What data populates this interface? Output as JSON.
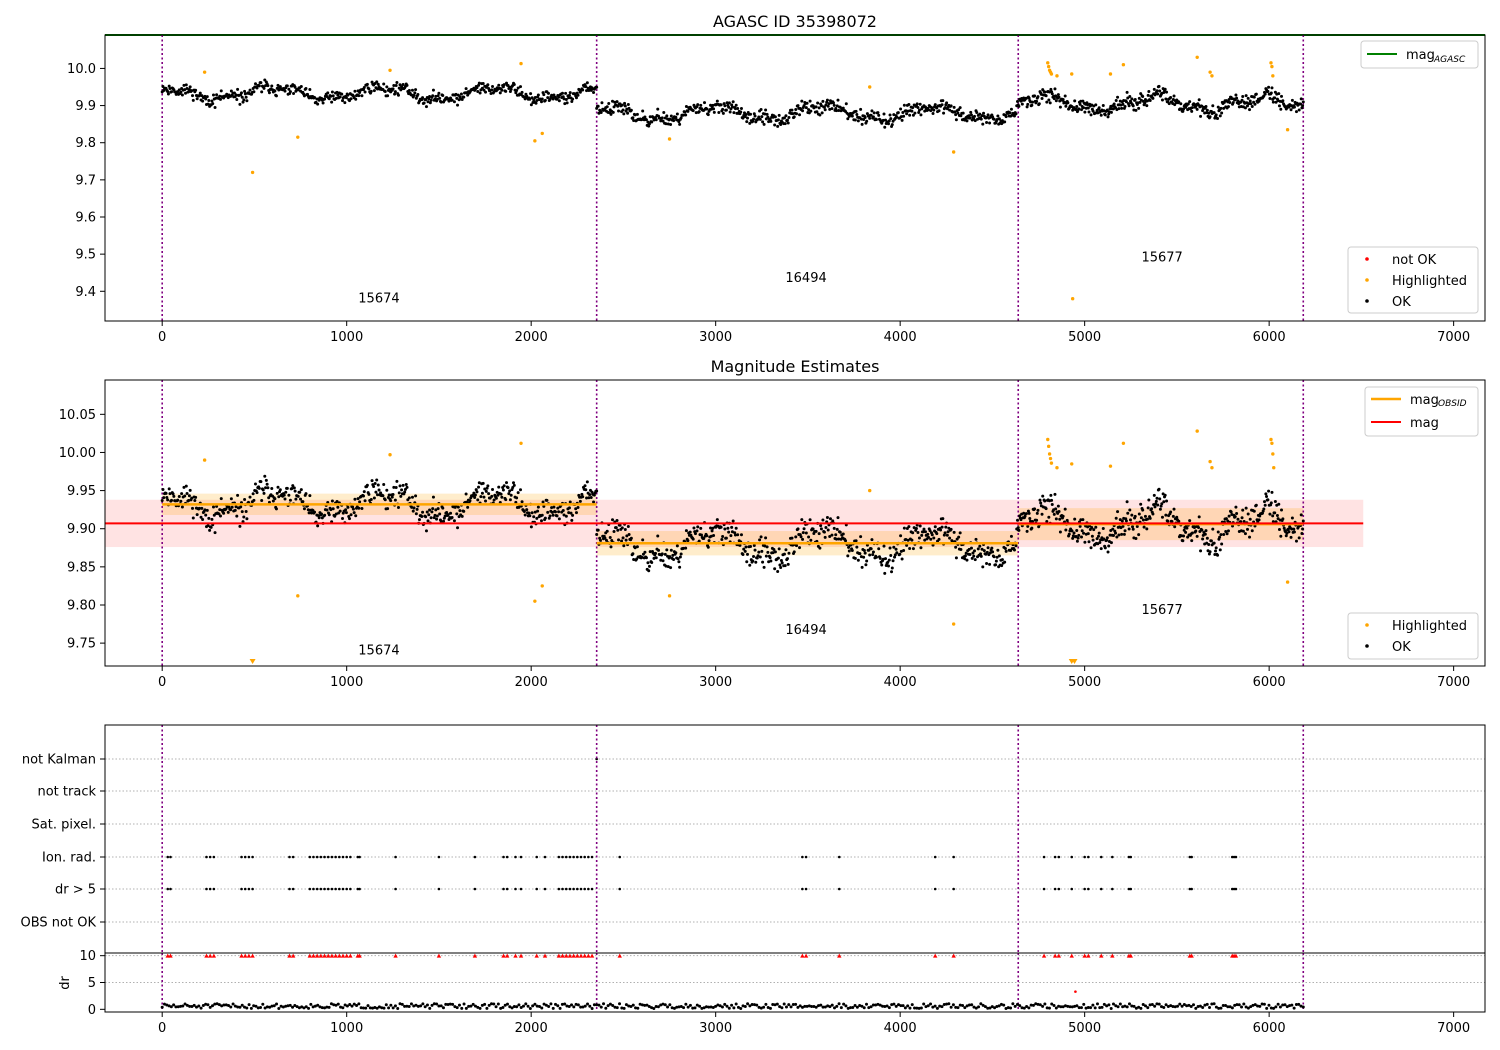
{
  "chart_data": [
    {
      "type": "scatter",
      "title": "AGASC ID 35398072",
      "xlim": [
        -310,
        7170
      ],
      "ylim": [
        9.32,
        10.09
      ],
      "xticks": [
        0,
        1000,
        2000,
        3000,
        4000,
        5000,
        6000,
        7000
      ],
      "yticks": [
        9.4,
        9.5,
        9.6,
        9.7,
        9.8,
        9.9,
        10.0
      ],
      "ytick_labels": [
        "9.4",
        "9.5",
        "9.6",
        "9.7",
        "9.8",
        "9.9",
        "10.0"
      ],
      "segment_boundaries": [
        0,
        2355,
        4640,
        6185
      ],
      "obsid_labels": [
        {
          "text": "15674",
          "x": 1175,
          "y": 9.37
        },
        {
          "text": "16494",
          "x": 3490,
          "y": 9.425
        },
        {
          "text": "15677",
          "x": 5420,
          "y": 9.48
        }
      ],
      "segments": [
        {
          "obsid": "15674",
          "x_start": 0,
          "x_end": 2355,
          "n_points": 560,
          "mean": 9.933,
          "spread": 0.018,
          "seed": 11
        },
        {
          "obsid": "16494",
          "x_start": 2355,
          "x_end": 4640,
          "n_points": 560,
          "mean": 9.88,
          "spread": 0.02,
          "seed": 23
        },
        {
          "obsid": "15677",
          "x_start": 4640,
          "x_end": 6185,
          "n_points": 420,
          "mean": 9.905,
          "spread": 0.022,
          "seed": 37
        }
      ],
      "series": [
        {
          "name": "mag_AGASC",
          "kind": "line",
          "color": "#008000",
          "y": 10.09,
          "x_start": -310,
          "x_end": 7170
        },
        {
          "name": "not OK",
          "kind": "scatter",
          "color": "#ff0000",
          "points": []
        },
        {
          "name": "Highlighted",
          "kind": "scatter",
          "color": "#ffa500",
          "points": [
            [
              230,
              9.99
            ],
            [
              490,
              9.72
            ],
            [
              735,
              9.815
            ],
            [
              1235,
              9.995
            ],
            [
              1945,
              10.013
            ],
            [
              2020,
              9.805
            ],
            [
              2060,
              9.825
            ],
            [
              2750,
              9.81
            ],
            [
              3835,
              9.95
            ],
            [
              4290,
              9.775
            ],
            [
              4800,
              10.015
            ],
            [
              4805,
              10.005
            ],
            [
              4810,
              9.995
            ],
            [
              4815,
              9.99
            ],
            [
              4820,
              9.985
            ],
            [
              4850,
              9.98
            ],
            [
              4930,
              9.985
            ],
            [
              4935,
              9.38
            ],
            [
              5140,
              9.985
            ],
            [
              5210,
              10.01
            ],
            [
              5610,
              10.03
            ],
            [
              5680,
              9.99
            ],
            [
              5690,
              9.98
            ],
            [
              6010,
              10.015
            ],
            [
              6015,
              10.005
            ],
            [
              6020,
              9.98
            ],
            [
              6100,
              9.835
            ]
          ]
        },
        {
          "name": "OK",
          "kind": "scatter",
          "color": "#000000",
          "points": []
        }
      ],
      "legend_position": "lower right",
      "legend_entries": [
        {
          "label": "not OK",
          "color": "#ff0000"
        },
        {
          "label": "Highlighted",
          "color": "#ffa500"
        },
        {
          "label": "OK",
          "color": "#000000"
        }
      ],
      "legend_line": {
        "label": "mag",
        "subscript": "AGASC",
        "color": "#008000",
        "position": "upper right"
      }
    },
    {
      "type": "scatter",
      "title": "Magnitude Estimates",
      "xlim": [
        -310,
        7170
      ],
      "ylim": [
        9.72,
        10.095
      ],
      "xticks": [
        0,
        1000,
        2000,
        3000,
        4000,
        5000,
        6000,
        7000
      ],
      "yticks": [
        9.75,
        9.8,
        9.85,
        9.9,
        9.95,
        10.0,
        10.05
      ],
      "ytick_labels": [
        "9.75",
        "9.80",
        "9.85",
        "9.90",
        "9.95",
        "10.00",
        "10.05"
      ],
      "segment_boundaries": [
        0,
        2355,
        4640,
        6185
      ],
      "obsid_labels": [
        {
          "text": "15674",
          "x": 1175,
          "y": 9.735
        },
        {
          "text": "16494",
          "x": 3490,
          "y": 9.762
        },
        {
          "text": "15677",
          "x": 5420,
          "y": 9.788
        }
      ],
      "mag": {
        "value": 9.907,
        "band_low": 9.876,
        "band_high": 9.938,
        "x_start": -310,
        "x_end": 6510,
        "color": "#ff0000",
        "band_color": "#ffe0e0"
      },
      "mag_obsid": [
        {
          "obsid": "15674",
          "x_start": 0,
          "x_end": 2355,
          "value": 9.932,
          "band_low": 9.918,
          "band_high": 9.946
        },
        {
          "obsid": "16494",
          "x_start": 2355,
          "x_end": 4640,
          "value": 9.881,
          "band_low": 9.865,
          "band_high": 9.897
        },
        {
          "obsid": "15677",
          "x_start": 4640,
          "x_end": 6185,
          "value": 9.906,
          "band_low": 9.885,
          "band_high": 9.927
        }
      ],
      "series": [
        {
          "name": "Highlighted",
          "kind": "scatter",
          "color": "#ffa500",
          "points": [
            [
              230,
              9.99
            ],
            [
              735,
              9.812
            ],
            [
              1235,
              9.997
            ],
            [
              1945,
              10.012
            ],
            [
              2020,
              9.805
            ],
            [
              2060,
              9.825
            ],
            [
              2750,
              9.812
            ],
            [
              3835,
              9.95
            ],
            [
              4290,
              9.775
            ],
            [
              4800,
              10.017
            ],
            [
              4805,
              10.008
            ],
            [
              4810,
              9.998
            ],
            [
              4815,
              9.992
            ],
            [
              4820,
              9.986
            ],
            [
              4850,
              9.98
            ],
            [
              4930,
              9.985
            ],
            [
              5140,
              9.982
            ],
            [
              5210,
              10.012
            ],
            [
              5610,
              10.028
            ],
            [
              5680,
              9.988
            ],
            [
              5690,
              9.98
            ],
            [
              6010,
              10.017
            ],
            [
              6015,
              10.012
            ],
            [
              6020,
              9.998
            ],
            [
              6025,
              9.98
            ],
            [
              6100,
              9.83
            ]
          ]
        },
        {
          "name": "OK",
          "kind": "scatter",
          "color": "#000000",
          "points": []
        }
      ],
      "clipped_markers": [
        490,
        4930,
        4945
      ],
      "legend_entries": [
        {
          "label": "Highlighted",
          "color": "#ffa500"
        },
        {
          "label": "OK",
          "color": "#000000"
        }
      ],
      "legend_lines": [
        {
          "label": "mag",
          "subscript": "OBSID",
          "color": "#ffa500"
        },
        {
          "label": "mag",
          "color": "#ff0000"
        }
      ]
    },
    {
      "type": "scatter",
      "title": "",
      "xlim": [
        -310,
        7170
      ],
      "categories": [
        "not Kalman",
        "not track",
        "Sat. pixel.",
        "Ion. rad.",
        "dr > 5",
        "OBS not OK"
      ],
      "flag_points": {
        "not Kalman": [
          2355
        ],
        "not track": [],
        "Sat. pixel.": [],
        "Ion. rad.": [
          30,
          45,
          240,
          260,
          280,
          430,
          450,
          470,
          490,
          690,
          710,
          800,
          820,
          840,
          860,
          880,
          900,
          920,
          940,
          960,
          980,
          1000,
          1020,
          1060,
          1070,
          1265,
          1500,
          1695,
          1850,
          1870,
          1915,
          1945,
          2030,
          2075,
          2150,
          2170,
          2190,
          2210,
          2230,
          2250,
          2270,
          2290,
          2310,
          2330,
          2480,
          3470,
          3490,
          3670,
          4190,
          4290,
          4780,
          4840,
          4860,
          4930,
          5000,
          5020,
          5090,
          5150,
          5240,
          5250,
          5570,
          5580,
          5800,
          5810,
          5820
        ],
        "dr > 5": [
          30,
          45,
          240,
          260,
          280,
          430,
          450,
          470,
          490,
          690,
          710,
          800,
          820,
          840,
          860,
          880,
          900,
          920,
          940,
          960,
          980,
          1000,
          1020,
          1060,
          1070,
          1265,
          1500,
          1695,
          1850,
          1870,
          1915,
          1945,
          2030,
          2075,
          2150,
          2170,
          2190,
          2210,
          2230,
          2250,
          2270,
          2290,
          2310,
          2330,
          2480,
          3470,
          3490,
          3670,
          4190,
          4290,
          4780,
          4840,
          4860,
          4930,
          5000,
          5020,
          5090,
          5150,
          5240,
          5250,
          5570,
          5580,
          5800,
          5810,
          5820
        ],
        "OBS not OK": []
      },
      "segment_boundaries": [
        0,
        2355,
        4640,
        6185
      ]
    },
    {
      "type": "scatter",
      "title": "",
      "xlim": [
        -310,
        7170
      ],
      "ylim": [
        -0.5,
        10.5
      ],
      "ylabel": "dr",
      "xticks": [
        0,
        1000,
        2000,
        3000,
        4000,
        5000,
        6000,
        7000
      ],
      "yticks": [
        0,
        5,
        10
      ],
      "segment_boundaries": [
        0,
        2355,
        4640,
        6185
      ],
      "dr_baseline": {
        "x_start": 0,
        "x_end": 6185,
        "typical": 0.6,
        "n_points": 500,
        "seed": 51
      },
      "clipped_over_5": [
        30,
        45,
        240,
        260,
        280,
        430,
        450,
        470,
        490,
        690,
        710,
        800,
        820,
        840,
        860,
        880,
        900,
        920,
        940,
        960,
        980,
        1000,
        1020,
        1060,
        1070,
        1265,
        1500,
        1695,
        1850,
        1870,
        1915,
        1945,
        2030,
        2075,
        2150,
        2170,
        2190,
        2210,
        2230,
        2250,
        2270,
        2290,
        2310,
        2330,
        2480,
        3470,
        3490,
        3670,
        4190,
        4290,
        4780,
        4840,
        4860,
        4930,
        5000,
        5020,
        5090,
        5150,
        5240,
        5250,
        5570,
        5580,
        5800,
        5810,
        5820
      ],
      "outlier_points": [
        [
          4950,
          3.3
        ]
      ]
    }
  ]
}
